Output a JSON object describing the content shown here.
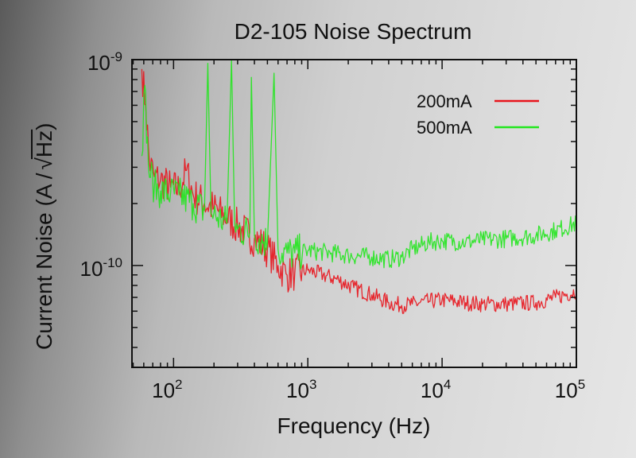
{
  "chart_data": {
    "type": "line",
    "title": "D2-105 Noise Spectrum",
    "xlabel": "Frequency (Hz)",
    "ylabel_prefix": "Current Noise (A /",
    "ylabel_radicand": "Hz",
    "ylabel_suffix": ")",
    "xscale": "log",
    "yscale": "log",
    "xlim": [
      49,
      100000
    ],
    "ylim": [
      3.2e-11,
      1e-09
    ],
    "grid": false,
    "legend_position": "top-right",
    "x_ticks": [
      {
        "value": 100,
        "base": "10",
        "exp": "2"
      },
      {
        "value": 1000,
        "base": "10",
        "exp": "3"
      },
      {
        "value": 10000,
        "base": "10",
        "exp": "4"
      },
      {
        "value": 100000,
        "base": "10",
        "exp": "5"
      }
    ],
    "y_ticks": [
      {
        "value": 1e-09,
        "base": "10",
        "exp": "-9"
      },
      {
        "value": 1e-10,
        "base": "10",
        "exp": "-10"
      }
    ],
    "series": [
      {
        "name": "200mA",
        "color": "#e8141c",
        "points": [
          [
            58,
            9e-10
          ],
          [
            62,
            6e-10
          ],
          [
            66,
            3.2e-10
          ],
          [
            72,
            2.7e-10
          ],
          [
            80,
            2.6e-10
          ],
          [
            95,
            2.4e-10
          ],
          [
            110,
            2.35e-10
          ],
          [
            125,
            2.9e-10
          ],
          [
            140,
            2.2e-10
          ],
          [
            170,
            2e-10
          ],
          [
            200,
            1.9e-10
          ],
          [
            250,
            1.7e-10
          ],
          [
            300,
            1.55e-10
          ],
          [
            400,
            1.35e-10
          ],
          [
            500,
            1.2e-10
          ],
          [
            600,
            1e-10
          ],
          [
            700,
            9e-11
          ],
          [
            800,
            9.2e-11
          ],
          [
            1000,
            9.5e-11
          ],
          [
            1300,
            9e-11
          ],
          [
            1700,
            8.5e-11
          ],
          [
            2200,
            7.8e-11
          ],
          [
            3000,
            7.2e-11
          ],
          [
            4000,
            6.6e-11
          ],
          [
            5000,
            6.4e-11
          ],
          [
            6000,
            6.5e-11
          ],
          [
            8000,
            6.7e-11
          ],
          [
            10000,
            6.8e-11
          ],
          [
            15000,
            6.6e-11
          ],
          [
            20000,
            6.5e-11
          ],
          [
            30000,
            6.5e-11
          ],
          [
            50000,
            6.6e-11
          ],
          [
            70000,
            7e-11
          ],
          [
            100000,
            7.5e-11
          ]
        ]
      },
      {
        "name": "500mA",
        "color": "#22e61e",
        "points": [
          [
            58,
            3.4e-10
          ],
          [
            61,
            7.5e-10
          ],
          [
            65,
            3e-10
          ],
          [
            72,
            2.4e-10
          ],
          [
            80,
            2.3e-10
          ],
          [
            95,
            2.25e-10
          ],
          [
            110,
            2.2e-10
          ],
          [
            140,
            2e-10
          ],
          [
            170,
            1.85e-10
          ],
          [
            180,
            9.6e-10
          ],
          [
            190,
            1.8e-10
          ],
          [
            250,
            1.6e-10
          ],
          [
            270,
            1e-09
          ],
          [
            285,
            1.6e-10
          ],
          [
            300,
            1.5e-10
          ],
          [
            370,
            1.45e-10
          ],
          [
            380,
            8.2e-10
          ],
          [
            400,
            1.4e-10
          ],
          [
            500,
            1.3e-10
          ],
          [
            560,
            8.6e-10
          ],
          [
            600,
            1.2e-10
          ],
          [
            700,
            1.15e-10
          ],
          [
            800,
            1.15e-10
          ],
          [
            1000,
            1.18e-10
          ],
          [
            1500,
            1.15e-10
          ],
          [
            2000,
            1.12e-10
          ],
          [
            3000,
            1.1e-10
          ],
          [
            4000,
            1.07e-10
          ],
          [
            5000,
            1.1e-10
          ],
          [
            6000,
            1.2e-10
          ],
          [
            8000,
            1.3e-10
          ],
          [
            10000,
            1.32e-10
          ],
          [
            15000,
            1.3e-10
          ],
          [
            20000,
            1.33e-10
          ],
          [
            30000,
            1.35e-10
          ],
          [
            50000,
            1.4e-10
          ],
          [
            70000,
            1.48e-10
          ],
          [
            100000,
            1.6e-10
          ]
        ]
      }
    ]
  }
}
